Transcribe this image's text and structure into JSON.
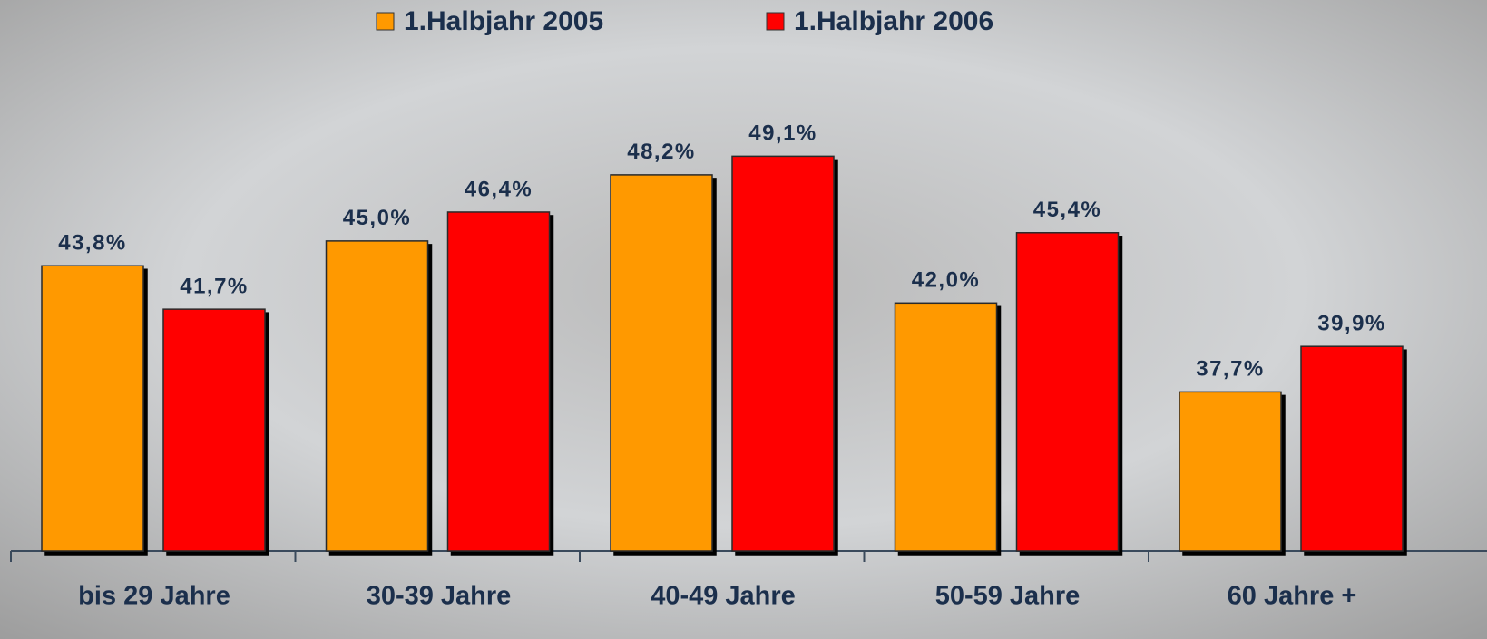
{
  "chart_data": {
    "type": "bar",
    "categories": [
      "bis 29 Jahre",
      "30-39 Jahre",
      "40-49 Jahre",
      "50-59 Jahre",
      "60 Jahre +"
    ],
    "series": [
      {
        "name": "1.Halbjahr 2005",
        "color": "#ff9900",
        "values": [
          43.8,
          45.0,
          48.2,
          42.0,
          37.7
        ],
        "value_labels": [
          "43,8%",
          "45,0%",
          "48,2%",
          "42,0%",
          "37,7%"
        ]
      },
      {
        "name": "1.Halbjahr 2006",
        "color": "#ff0000",
        "values": [
          41.7,
          46.4,
          49.1,
          45.4,
          39.9
        ],
        "value_labels": [
          "41,7%",
          "46,4%",
          "49,1%",
          "45,4%",
          "39,9%"
        ]
      }
    ],
    "ylim": [
      30,
      56
    ],
    "legend": "top",
    "grid": false
  }
}
